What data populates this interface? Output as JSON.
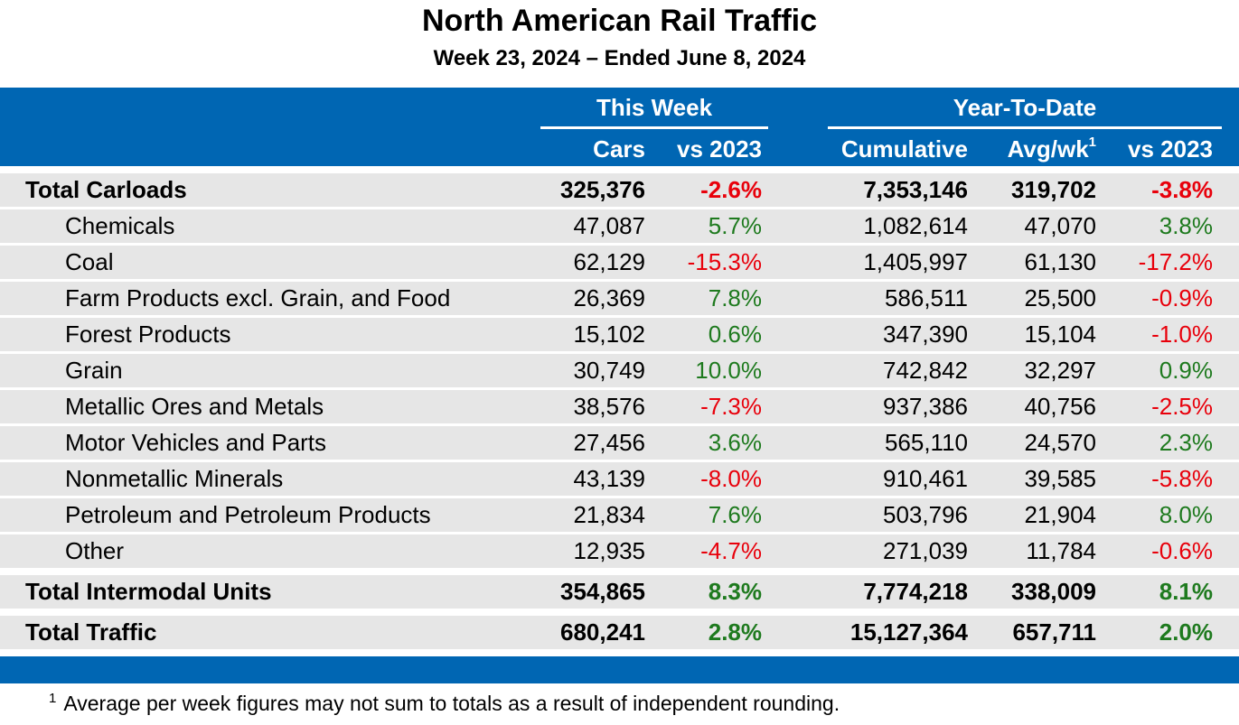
{
  "title": "North American Rail Traffic",
  "subtitle": "Week 23, 2024 – Ended June 8, 2024",
  "header": {
    "this_week": "This Week",
    "ytd": "Year-To-Date",
    "cars": "Cars",
    "vs2023_week": "vs 2023",
    "cumulative": "Cumulative",
    "avg_wk": "Avg/wk",
    "avg_wk_sup": "1",
    "vs2023_ytd": "vs 2023"
  },
  "rows": [
    {
      "label": "Total Carloads",
      "cars": "325,376",
      "vs_week": "-2.6%",
      "cumulative": "7,353,146",
      "avg_wk": "319,702",
      "vs_ytd": "-3.8%"
    },
    {
      "label": "Chemicals",
      "cars": "47,087",
      "vs_week": "5.7%",
      "cumulative": "1,082,614",
      "avg_wk": "47,070",
      "vs_ytd": "3.8%"
    },
    {
      "label": "Coal",
      "cars": "62,129",
      "vs_week": "-15.3%",
      "cumulative": "1,405,997",
      "avg_wk": "61,130",
      "vs_ytd": "-17.2%"
    },
    {
      "label": "Farm Products excl. Grain, and Food",
      "cars": "26,369",
      "vs_week": "7.8%",
      "cumulative": "586,511",
      "avg_wk": "25,500",
      "vs_ytd": "-0.9%"
    },
    {
      "label": "Forest Products",
      "cars": "15,102",
      "vs_week": "0.6%",
      "cumulative": "347,390",
      "avg_wk": "15,104",
      "vs_ytd": "-1.0%"
    },
    {
      "label": "Grain",
      "cars": "30,749",
      "vs_week": "10.0%",
      "cumulative": "742,842",
      "avg_wk": "32,297",
      "vs_ytd": "0.9%"
    },
    {
      "label": "Metallic Ores and Metals",
      "cars": "38,576",
      "vs_week": "-7.3%",
      "cumulative": "937,386",
      "avg_wk": "40,756",
      "vs_ytd": "-2.5%"
    },
    {
      "label": "Motor Vehicles and Parts",
      "cars": "27,456",
      "vs_week": "3.6%",
      "cumulative": "565,110",
      "avg_wk": "24,570",
      "vs_ytd": "2.3%"
    },
    {
      "label": "Nonmetallic Minerals",
      "cars": "43,139",
      "vs_week": "-8.0%",
      "cumulative": "910,461",
      "avg_wk": "39,585",
      "vs_ytd": "-5.8%"
    },
    {
      "label": "Petroleum and Petroleum Products",
      "cars": "21,834",
      "vs_week": "7.6%",
      "cumulative": "503,796",
      "avg_wk": "21,904",
      "vs_ytd": "8.0%"
    },
    {
      "label": "Other",
      "cars": "12,935",
      "vs_week": "-4.7%",
      "cumulative": "271,039",
      "avg_wk": "11,784",
      "vs_ytd": "-0.6%"
    },
    {
      "label": "Total Intermodal Units",
      "cars": "354,865",
      "vs_week": "8.3%",
      "cumulative": "7,774,218",
      "avg_wk": "338,009",
      "vs_ytd": "8.1%"
    },
    {
      "label": "Total Traffic",
      "cars": "680,241",
      "vs_week": "2.8%",
      "cumulative": "15,127,364",
      "avg_wk": "657,711",
      "vs_ytd": "2.0%"
    }
  ],
  "colors": {
    "header_band": "#0066b3",
    "row_background": "#e6e6e6",
    "negative": "#e8000b",
    "positive": "#1e7a1e"
  },
  "footnote": {
    "mark": "1",
    "text": "Average per week figures may not sum to totals as a result of independent rounding."
  }
}
